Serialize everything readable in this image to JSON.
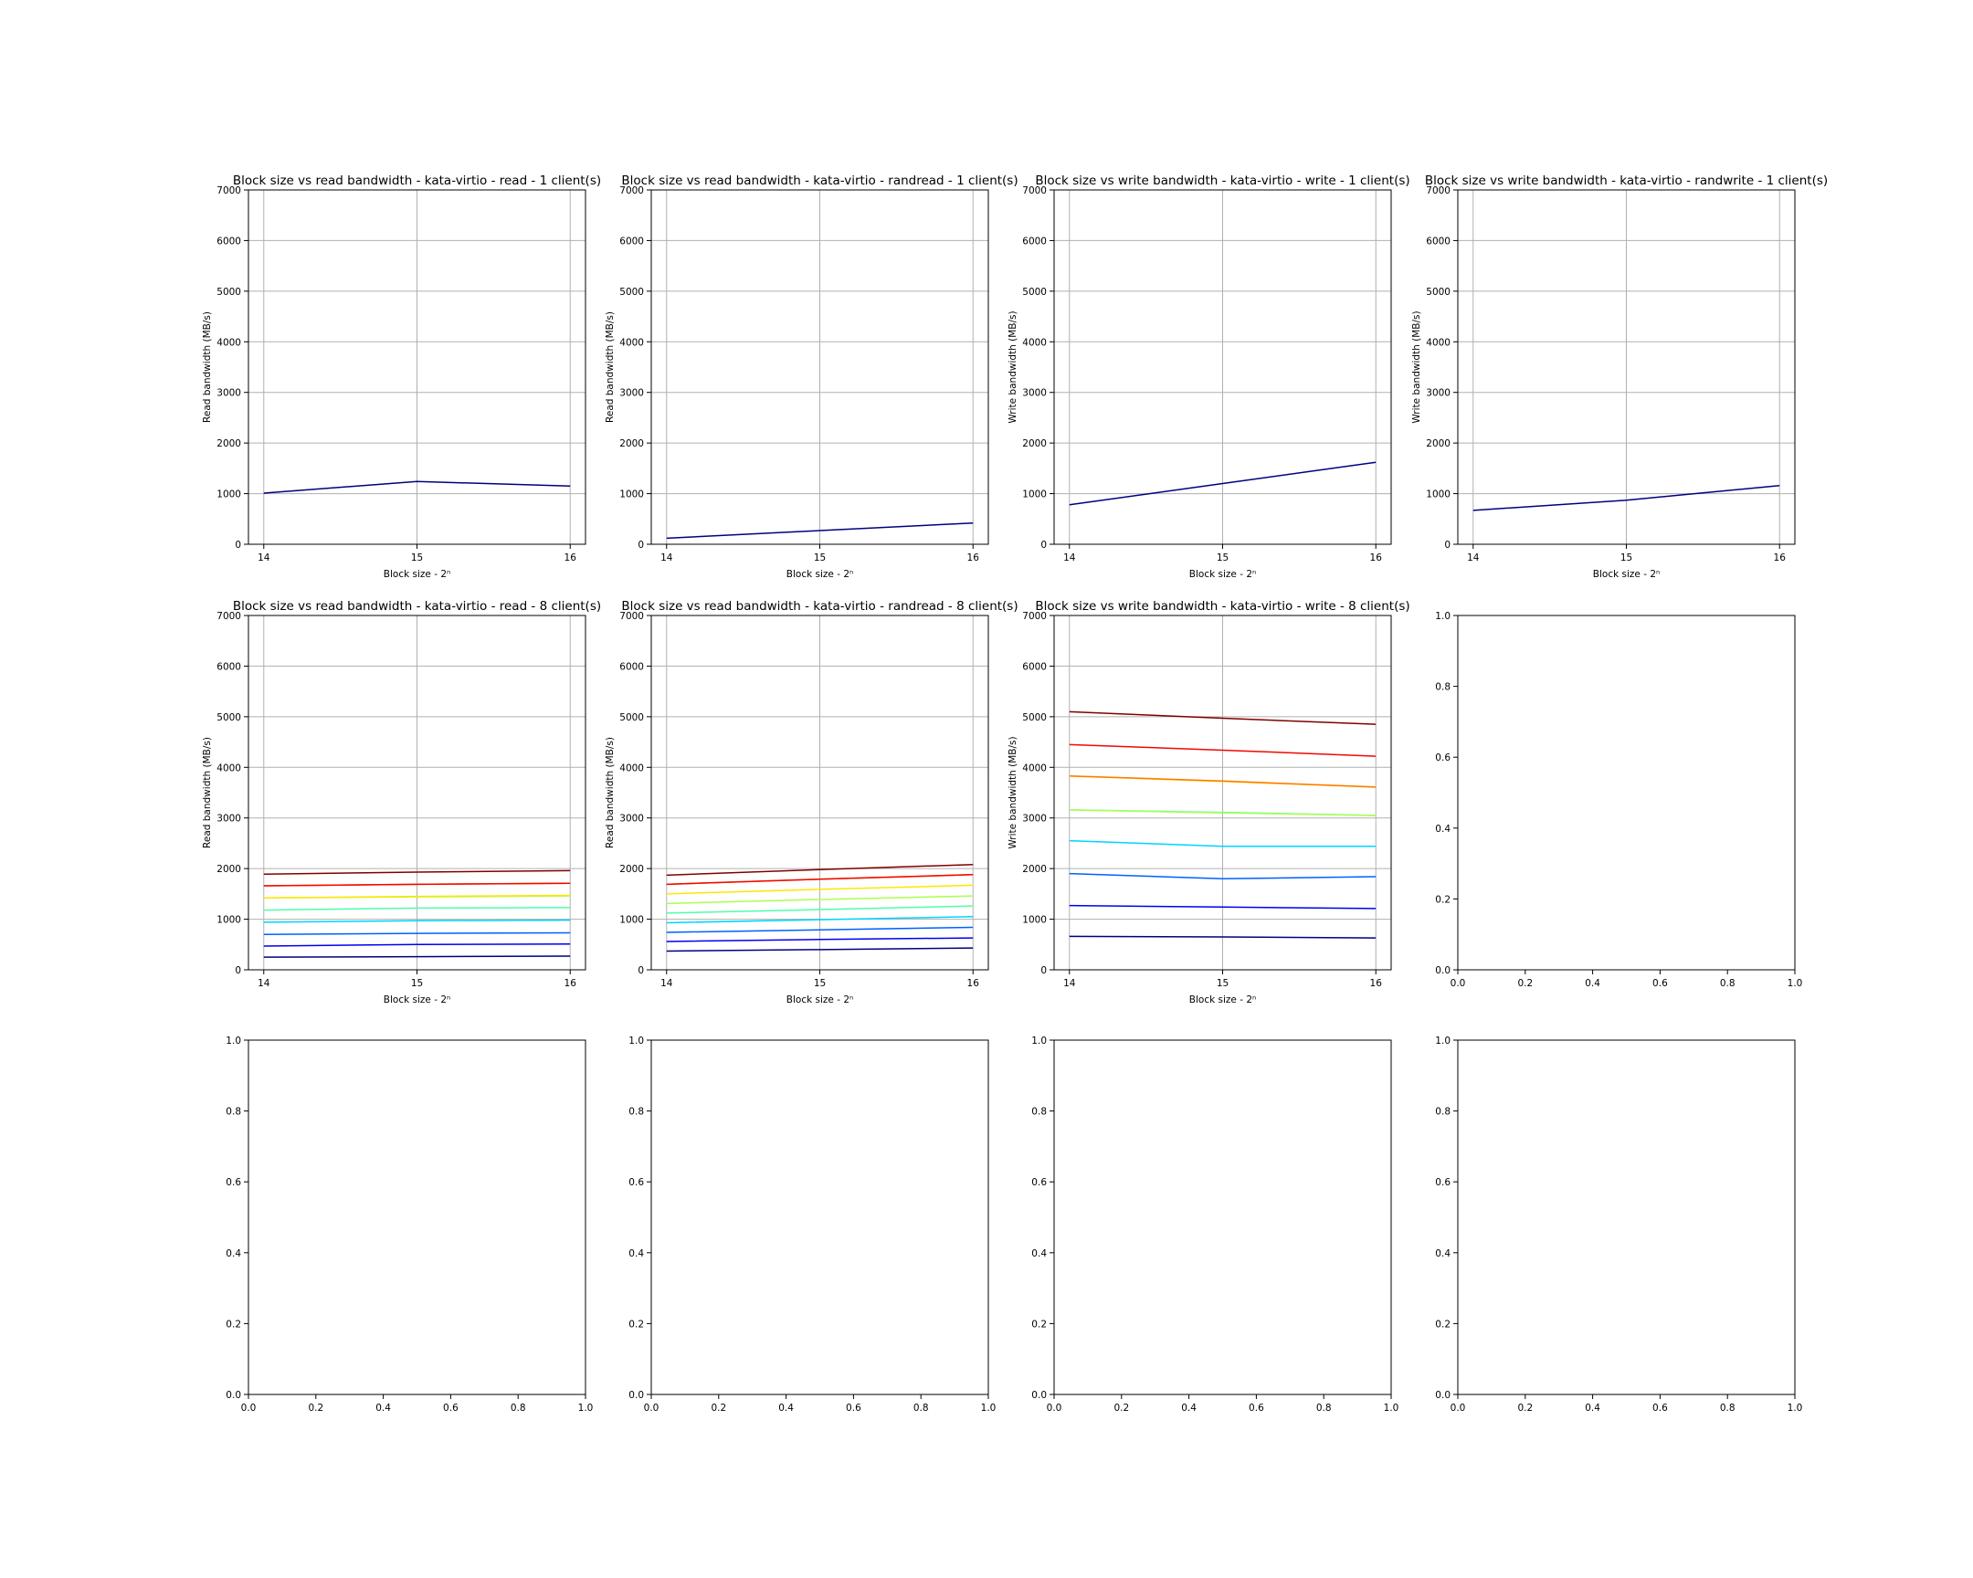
{
  "figure": {
    "background": "#ffffff",
    "grid_color": "#b0b0b0",
    "axis_color": "#000000",
    "colormap": "jet"
  },
  "chart_data": [
    {
      "type": "line",
      "title": "Block size vs read bandwidth - kata-virtio - read - 1 client(s)",
      "xlabel": "Block size - 2ⁿ",
      "ylabel": "Read bandwidth (MB/s)",
      "x": [
        14,
        15,
        16
      ],
      "xticks": [
        "14",
        "15",
        "16"
      ],
      "xlim": [
        13.9,
        16.1
      ],
      "ylim": [
        0,
        7000
      ],
      "yticks": [
        "0",
        "1000",
        "2000",
        "3000",
        "4000",
        "5000",
        "6000",
        "7000"
      ],
      "grid": true,
      "series": [
        {
          "values": [
            1010,
            1240,
            1150
          ],
          "color": "#00007f"
        }
      ]
    },
    {
      "type": "line",
      "title": "Block size vs read bandwidth - kata-virtio - randread - 1 client(s)",
      "xlabel": "Block size - 2ⁿ",
      "ylabel": "Read bandwidth (MB/s)",
      "x": [
        14,
        15,
        16
      ],
      "xticks": [
        "14",
        "15",
        "16"
      ],
      "xlim": [
        13.9,
        16.1
      ],
      "ylim": [
        0,
        7000
      ],
      "yticks": [
        "0",
        "1000",
        "2000",
        "3000",
        "4000",
        "5000",
        "6000",
        "7000"
      ],
      "grid": true,
      "series": [
        {
          "values": [
            120,
            270,
            420
          ],
          "color": "#00007f"
        }
      ]
    },
    {
      "type": "line",
      "title": "Block size vs write bandwidth - kata-virtio - write - 1 client(s)",
      "xlabel": "Block size - 2ⁿ",
      "ylabel": "Write bandwidth (MB/s)",
      "x": [
        14,
        15,
        16
      ],
      "xticks": [
        "14",
        "15",
        "16"
      ],
      "xlim": [
        13.9,
        16.1
      ],
      "ylim": [
        0,
        7000
      ],
      "yticks": [
        "0",
        "1000",
        "2000",
        "3000",
        "4000",
        "5000",
        "6000",
        "7000"
      ],
      "grid": true,
      "series": [
        {
          "values": [
            780,
            1200,
            1620
          ],
          "color": "#00007f"
        }
      ]
    },
    {
      "type": "line",
      "title": "Block size vs write bandwidth - kata-virtio - randwrite - 1 client(s)",
      "xlabel": "Block size - 2ⁿ",
      "ylabel": "Write bandwidth (MB/s)",
      "x": [
        14,
        15,
        16
      ],
      "xticks": [
        "14",
        "15",
        "16"
      ],
      "xlim": [
        13.9,
        16.1
      ],
      "ylim": [
        0,
        7000
      ],
      "yticks": [
        "0",
        "1000",
        "2000",
        "3000",
        "4000",
        "5000",
        "6000",
        "7000"
      ],
      "grid": true,
      "series": [
        {
          "values": [
            670,
            870,
            1160
          ],
          "color": "#00007f"
        }
      ]
    },
    {
      "type": "line",
      "title": "Block size vs read bandwidth - kata-virtio - read - 8 client(s)",
      "xlabel": "Block size - 2ⁿ",
      "ylabel": "Read bandwidth (MB/s)",
      "x": [
        14,
        15,
        16
      ],
      "xticks": [
        "14",
        "15",
        "16"
      ],
      "xlim": [
        13.9,
        16.1
      ],
      "ylim": [
        0,
        7000
      ],
      "yticks": [
        "0",
        "1000",
        "2000",
        "3000",
        "4000",
        "5000",
        "6000",
        "7000"
      ],
      "grid": true,
      "series": [
        {
          "values": [
            250,
            260,
            270
          ],
          "color": "#00007f"
        },
        {
          "values": [
            470,
            500,
            510
          ],
          "color": "#0000f1"
        },
        {
          "values": [
            700,
            720,
            730
          ],
          "color": "#0060ff"
        },
        {
          "values": [
            940,
            970,
            980
          ],
          "color": "#00d4ff"
        },
        {
          "values": [
            1180,
            1220,
            1230
          ],
          "color": "#4dffaa"
        },
        {
          "values": [
            1420,
            1440,
            1460
          ],
          "color": "#aaff4d"
        },
        {
          "values": [
            1420,
            1450,
            1470
          ],
          "color": "#ffe600"
        },
        {
          "values": [
            1660,
            1690,
            1710
          ],
          "color": "#ff7700"
        },
        {
          "values": [
            1660,
            1690,
            1710
          ],
          "color": "#f10800"
        },
        {
          "values": [
            1890,
            1930,
            1960
          ],
          "color": "#7f0000"
        }
      ]
    },
    {
      "type": "line",
      "title": "Block size vs read bandwidth - kata-virtio - randread - 8 client(s)",
      "xlabel": "Block size - 2ⁿ",
      "ylabel": "Read bandwidth (MB/s)",
      "x": [
        14,
        15,
        16
      ],
      "xticks": [
        "14",
        "15",
        "16"
      ],
      "xlim": [
        13.9,
        16.1
      ],
      "ylim": [
        0,
        7000
      ],
      "yticks": [
        "0",
        "1000",
        "2000",
        "3000",
        "4000",
        "5000",
        "6000",
        "7000"
      ],
      "grid": true,
      "series": [
        {
          "values": [
            370,
            400,
            430
          ],
          "color": "#00007f"
        },
        {
          "values": [
            560,
            600,
            630
          ],
          "color": "#0000f1"
        },
        {
          "values": [
            740,
            790,
            840
          ],
          "color": "#0060ff"
        },
        {
          "values": [
            930,
            990,
            1050
          ],
          "color": "#00d4ff"
        },
        {
          "values": [
            1120,
            1190,
            1260
          ],
          "color": "#4dffaa"
        },
        {
          "values": [
            1310,
            1390,
            1460
          ],
          "color": "#aaff4d"
        },
        {
          "values": [
            1500,
            1590,
            1670
          ],
          "color": "#ffe600"
        },
        {
          "values": [
            1690,
            1790,
            1880
          ],
          "color": "#ff7700"
        },
        {
          "values": [
            1690,
            1790,
            1880
          ],
          "color": "#f10800"
        },
        {
          "values": [
            1870,
            1980,
            2080
          ],
          "color": "#7f0000"
        }
      ]
    },
    {
      "type": "line",
      "title": "Block size vs write bandwidth - kata-virtio - write - 8 client(s)",
      "xlabel": "Block size - 2ⁿ",
      "ylabel": "Write bandwidth (MB/s)",
      "x": [
        14,
        15,
        16
      ],
      "xticks": [
        "14",
        "15",
        "16"
      ],
      "xlim": [
        13.9,
        16.1
      ],
      "ylim": [
        0,
        7000
      ],
      "yticks": [
        "0",
        "1000",
        "2000",
        "3000",
        "4000",
        "5000",
        "6000",
        "7000"
      ],
      "grid": true,
      "series": [
        {
          "values": [
            660,
            650,
            630
          ],
          "color": "#00007f"
        },
        {
          "values": [
            1270,
            1240,
            1210
          ],
          "color": "#0000f1"
        },
        {
          "values": [
            1900,
            1800,
            1840
          ],
          "color": "#0060ff"
        },
        {
          "values": [
            2550,
            2440,
            2440
          ],
          "color": "#00d4ff"
        },
        {
          "values": [
            3160,
            3110,
            3050
          ],
          "color": "#4dffaa"
        },
        {
          "values": [
            3160,
            3100,
            3050
          ],
          "color": "#aaff4d"
        },
        {
          "values": [
            3830,
            3720,
            3610
          ],
          "color": "#ffe600"
        },
        {
          "values": [
            3830,
            3730,
            3610
          ],
          "color": "#ff7700"
        },
        {
          "values": [
            4450,
            4340,
            4220
          ],
          "color": "#f10800"
        },
        {
          "values": [
            5100,
            4970,
            4850
          ],
          "color": "#7f0000"
        }
      ]
    },
    {
      "type": "line",
      "title": "",
      "xlabel": "",
      "ylabel": "",
      "x": [],
      "xticks": [
        "0.0",
        "0.2",
        "0.4",
        "0.6",
        "0.8",
        "1.0"
      ],
      "xlim": [
        0,
        1
      ],
      "ylim": [
        0,
        1
      ],
      "yticks": [
        "0.0",
        "0.2",
        "0.4",
        "0.6",
        "0.8",
        "1.0"
      ],
      "grid": false,
      "series": []
    },
    {
      "type": "line",
      "title": "",
      "xlabel": "",
      "ylabel": "",
      "x": [],
      "xticks": [
        "0.0",
        "0.2",
        "0.4",
        "0.6",
        "0.8",
        "1.0"
      ],
      "xlim": [
        0,
        1
      ],
      "ylim": [
        0,
        1
      ],
      "yticks": [
        "0.0",
        "0.2",
        "0.4",
        "0.6",
        "0.8",
        "1.0"
      ],
      "grid": false,
      "series": []
    },
    {
      "type": "line",
      "title": "",
      "xlabel": "",
      "ylabel": "",
      "x": [],
      "xticks": [
        "0.0",
        "0.2",
        "0.4",
        "0.6",
        "0.8",
        "1.0"
      ],
      "xlim": [
        0,
        1
      ],
      "ylim": [
        0,
        1
      ],
      "yticks": [
        "0.0",
        "0.2",
        "0.4",
        "0.6",
        "0.8",
        "1.0"
      ],
      "grid": false,
      "series": []
    },
    {
      "type": "line",
      "title": "",
      "xlabel": "",
      "ylabel": "",
      "x": [],
      "xticks": [
        "0.0",
        "0.2",
        "0.4",
        "0.6",
        "0.8",
        "1.0"
      ],
      "xlim": [
        0,
        1
      ],
      "ylim": [
        0,
        1
      ],
      "yticks": [
        "0.0",
        "0.2",
        "0.4",
        "0.6",
        "0.8",
        "1.0"
      ],
      "grid": false,
      "series": []
    },
    {
      "type": "line",
      "title": "",
      "xlabel": "",
      "ylabel": "",
      "x": [],
      "xticks": [
        "0.0",
        "0.2",
        "0.4",
        "0.6",
        "0.8",
        "1.0"
      ],
      "xlim": [
        0,
        1
      ],
      "ylim": [
        0,
        1
      ],
      "yticks": [
        "0.0",
        "0.2",
        "0.4",
        "0.6",
        "0.8",
        "1.0"
      ],
      "grid": false,
      "series": []
    }
  ]
}
